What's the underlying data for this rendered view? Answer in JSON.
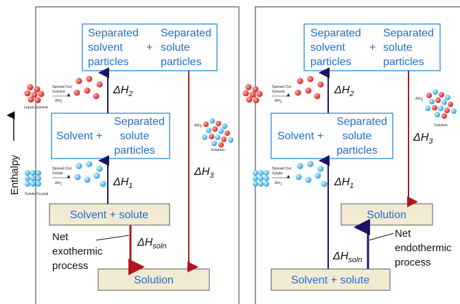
{
  "axis_label": "Enthalpy",
  "left_panel": {
    "top_box": {
      "left": [
        "Separated",
        "solvent",
        "particles"
      ],
      "plus": "+",
      "right": [
        "Separated",
        "solute",
        "particles"
      ]
    },
    "middle_box": {
      "left": "Solvent +",
      "right": [
        "Separated",
        "solute",
        "particles"
      ]
    },
    "lower_box": "Solvent + solute",
    "bottom_box": "Solution",
    "dh2": {
      "symbol": "ΔH",
      "sub": "2"
    },
    "dh1": {
      "symbol": "ΔH",
      "sub": "1"
    },
    "dh3": {
      "symbol": "ΔH",
      "sub": "3"
    },
    "dhsoln": {
      "symbol": "ΔH",
      "sub": "soln"
    },
    "note": [
      "Net",
      "exothermic",
      "process"
    ],
    "solvent_label": "Liquid Solvent",
    "solvent_step": [
      "Spread Out",
      "Solvent"
    ],
    "solvent_dh": {
      "symbol": "ΔH",
      "sub": "2"
    },
    "solute_label": "Solute Crystal",
    "solute_step": [
      "Spread Out",
      "Solute"
    ],
    "solute_dh": {
      "symbol": "ΔH",
      "sub": "1"
    },
    "solution_dh": {
      "symbol": "ΔH",
      "sub": "3"
    },
    "solution_label": "Solution"
  },
  "right_panel": {
    "top_box": {
      "left": [
        "Separated",
        "solvent",
        "particles"
      ],
      "plus": "+",
      "right": [
        "Separated",
        "solute",
        "particles"
      ]
    },
    "middle_box": {
      "left": "Solvent +",
      "right": [
        "Separated",
        "solute",
        "particles"
      ]
    },
    "upper_box": "Solution",
    "bottom_box": "Solvent + solute",
    "dh2": {
      "symbol": "ΔH",
      "sub": "2"
    },
    "dh1": {
      "symbol": "ΔH",
      "sub": "1"
    },
    "dh3": {
      "symbol": "ΔH",
      "sub": "3"
    },
    "dhsoln": {
      "symbol": "ΔH",
      "sub": "soln"
    },
    "note": [
      "Net",
      "endothermic",
      "process"
    ],
    "solvent_step": [
      "Spread Out",
      "Solvent"
    ],
    "solvent_dh": {
      "symbol": "ΔH",
      "sub": "2"
    },
    "solute_step": [
      "Spread Out",
      "Solute"
    ],
    "solute_dh": {
      "symbol": "ΔH",
      "sub": "1"
    },
    "solution_dh": {
      "symbol": "ΔH",
      "sub": "3"
    },
    "solution_label": "Solution"
  }
}
